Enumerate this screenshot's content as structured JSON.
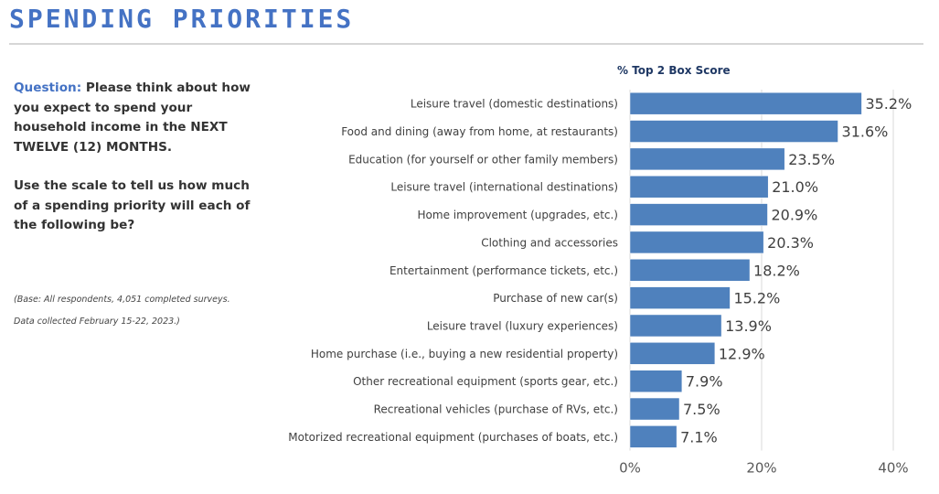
{
  "header": {
    "title": "SPENDING PRIORITIES"
  },
  "question": {
    "label": "Question:",
    "text": "Please think about how you expect to spend your household income in the NEXT TWELVE (12) MONTHS.",
    "instruction": "Use the scale to tell us how much of a spending priority will each of the following be?"
  },
  "base": {
    "line1": "(Base: All respondents, 4,051 completed surveys.",
    "line2": "Data collected February 15-22, 2023.)"
  },
  "colors": {
    "bar": "#4f81bd",
    "title": "#4472c4",
    "chart_title": "#1f3864"
  },
  "chart_data": {
    "type": "bar",
    "orientation": "horizontal",
    "title": "% Top 2 Box Score",
    "categories": [
      "Leisure travel (domestic destinations)",
      "Food and dining (away from home, at restaurants)",
      "Education (for yourself or other family members)",
      "Leisure travel (international destinations)",
      "Home improvement (upgrades, etc.)",
      "Clothing and accessories",
      "Entertainment (performance tickets, etc.)",
      "Purchase of new car(s)",
      "Leisure travel (luxury experiences)",
      "Home purchase (i.e., buying a new residential property)",
      "Other recreational equipment (sports gear, etc.)",
      "Recreational vehicles (purchase of RVs, etc.)",
      "Motorized recreational equipment (purchases of boats, etc.)"
    ],
    "values": [
      35.2,
      31.6,
      23.5,
      21.0,
      20.9,
      20.3,
      18.2,
      15.2,
      13.9,
      12.9,
      7.9,
      7.5,
      7.1
    ],
    "value_labels": [
      "35.2%",
      "31.6%",
      "23.5%",
      "21.0%",
      "20.9%",
      "20.3%",
      "18.2%",
      "15.2%",
      "13.9%",
      "12.9%",
      "7.9%",
      "7.5%",
      "7.1%"
    ],
    "xlim": [
      0,
      40
    ],
    "xticks": [
      0,
      20,
      40
    ],
    "xtick_labels": [
      "0%",
      "20%",
      "40%"
    ],
    "grid": true
  }
}
